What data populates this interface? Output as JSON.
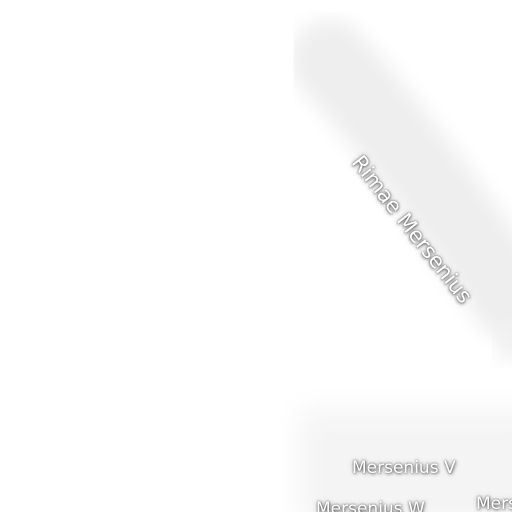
{
  "map": {
    "labels": {
      "rima": "Rimae Mersenius",
      "crater_v": "Mersenius V",
      "crater_w": "Mersenius W",
      "edge": "Mers"
    },
    "colors": {
      "background": "#ffffff",
      "rille_shade": "#efefef",
      "lower_shade": "#f6f6f6",
      "label_text": "#ffffff"
    }
  }
}
